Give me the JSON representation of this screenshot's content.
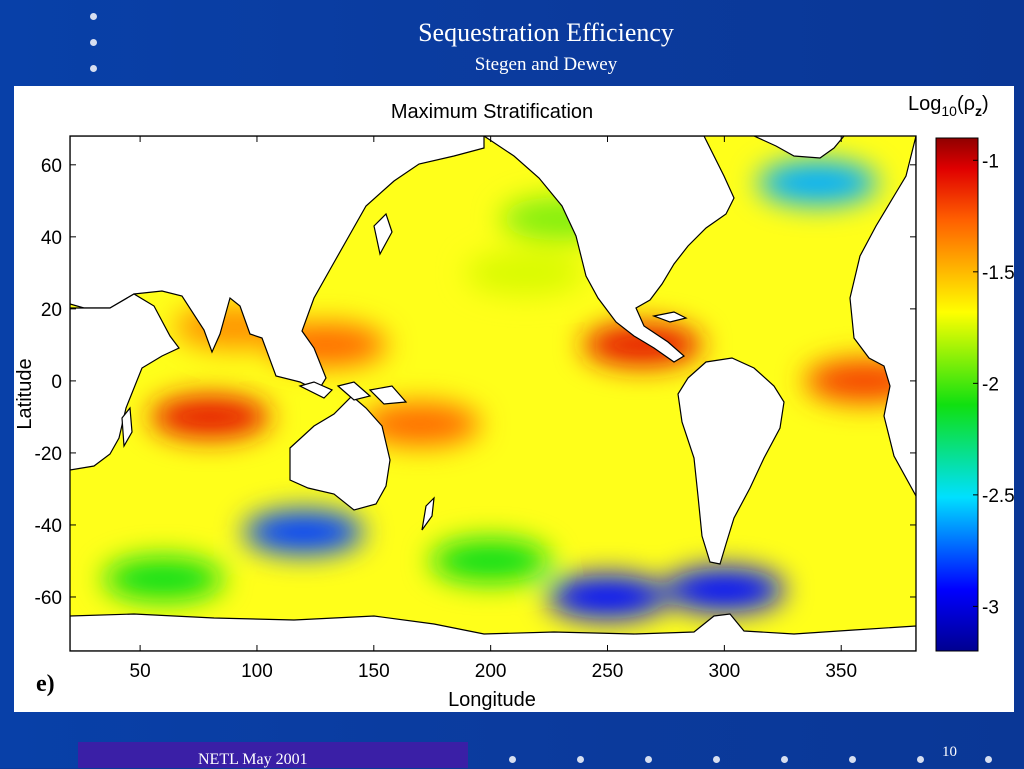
{
  "slide": {
    "title": "Sequestration Efficiency",
    "subtitle": "Stegen and Dewey",
    "footer": "NETL May 2001",
    "page_number": "10"
  },
  "chart_data": {
    "type": "heatmap",
    "title": "Maximum Stratification",
    "panel_label": "e)",
    "xlabel": "Longitude",
    "ylabel": "Latitude",
    "xlim": [
      20,
      382
    ],
    "ylim": [
      -75,
      68
    ],
    "x_ticks": [
      50,
      100,
      150,
      200,
      250,
      300,
      350
    ],
    "y_ticks": [
      60,
      40,
      20,
      0,
      -20,
      -40,
      -60
    ],
    "colorbar": {
      "label_base": "Log",
      "label_sub": "10",
      "label_paren_open": "(ρ",
      "label_var_sub": "z",
      "label_paren_close": ")",
      "range": [
        -3.2,
        -0.9
      ],
      "ticks": [
        -1,
        -1.5,
        -2,
        -2.5,
        -3
      ],
      "tick_labels": [
        "-1",
        "-1.5",
        "-2",
        "-2.5",
        "-3"
      ]
    },
    "field_regions": [
      {
        "lon": 80,
        "lat": -10,
        "value": -1.1
      },
      {
        "lon": 265,
        "lat": 10,
        "value": -1.1
      },
      {
        "lon": 360,
        "lat": 0,
        "value": -1.2
      },
      {
        "lon": 130,
        "lat": 10,
        "value": -1.3
      },
      {
        "lon": 170,
        "lat": -12,
        "value": -1.3
      },
      {
        "lon": 90,
        "lat": 15,
        "value": -1.4
      },
      {
        "lon": 215,
        "lat": 30,
        "value": -1.75
      },
      {
        "lon": 230,
        "lat": 45,
        "value": -1.9
      },
      {
        "lon": 340,
        "lat": 55,
        "value": -2.6
      },
      {
        "lon": 120,
        "lat": -42,
        "value": -2.8
      },
      {
        "lon": 250,
        "lat": -60,
        "value": -2.9
      },
      {
        "lon": 300,
        "lat": -58,
        "value": -2.9
      },
      {
        "lon": 200,
        "lat": -50,
        "value": -2.1
      },
      {
        "lon": 60,
        "lat": -55,
        "value": -2.1
      }
    ]
  }
}
